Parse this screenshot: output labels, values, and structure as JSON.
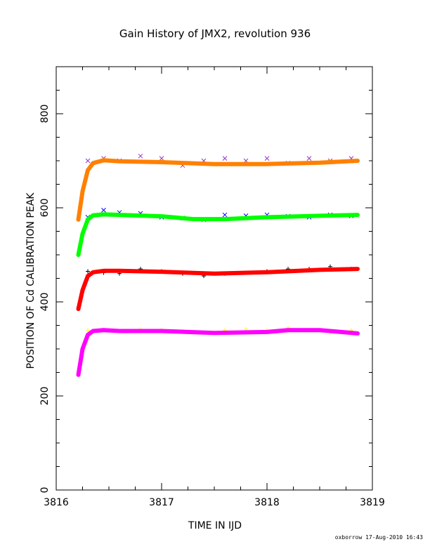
{
  "chart_data": {
    "type": "scatter",
    "title": "Gain History of JMX2, revolution 936",
    "xlabel": "TIME IN IJD",
    "ylabel": "POSITION OF Cd CALIBRATION PEAK",
    "xlim": [
      3816,
      3819
    ],
    "ylim": [
      0,
      900
    ],
    "x_ticks": [
      "3816",
      "3817",
      "3818",
      "3819"
    ],
    "y_ticks": [
      "0",
      "200",
      "400",
      "600",
      "800"
    ],
    "grid": false,
    "footer": "oxborrow 17-Aug-2010 16:43",
    "series": [
      {
        "marker": "x",
        "color": "#9933cc",
        "x": [
          3816.3,
          3816.45,
          3816.6,
          3816.8,
          3817.0,
          3817.2,
          3817.4,
          3817.6,
          3817.8,
          3818.0,
          3818.2,
          3818.4,
          3818.6,
          3818.8
        ],
        "y": [
          700,
          705,
          700,
          710,
          705,
          690,
          700,
          705,
          700,
          705,
          695,
          705,
          700,
          705
        ]
      },
      {
        "marker": "line",
        "color": "#ff8000",
        "x": [
          3816.21,
          3816.25,
          3816.3,
          3816.35,
          3816.45,
          3816.6,
          3817.0,
          3817.5,
          3818.0,
          3818.5,
          3818.86
        ],
        "y": [
          575,
          635,
          680,
          695,
          701,
          699,
          697,
          693,
          693,
          696,
          700
        ]
      },
      {
        "marker": "x",
        "color": "#0000ff",
        "x": [
          3816.3,
          3816.45,
          3816.6,
          3816.8,
          3817.0,
          3817.2,
          3817.4,
          3817.6,
          3817.8,
          3818.0,
          3818.2,
          3818.4,
          3818.6,
          3818.8
        ],
        "y": [
          580,
          595,
          590,
          588,
          580,
          578,
          575,
          585,
          583,
          585,
          582,
          580,
          585,
          583
        ]
      },
      {
        "marker": "line",
        "color": "#00ff00",
        "x": [
          3816.21,
          3816.25,
          3816.3,
          3816.35,
          3816.45,
          3816.6,
          3817.0,
          3817.3,
          3817.6,
          3818.0,
          3818.5,
          3818.86
        ],
        "y": [
          500,
          545,
          575,
          584,
          586,
          585,
          582,
          576,
          576,
          580,
          583,
          585
        ]
      },
      {
        "marker": "+",
        "color": "#000000",
        "x": [
          3816.3,
          3816.45,
          3816.6,
          3816.8,
          3817.0,
          3817.2,
          3817.4,
          3817.6,
          3817.8,
          3818.0,
          3818.2,
          3818.4,
          3818.6,
          3818.8
        ],
        "y": [
          465,
          462,
          460,
          470,
          465,
          460,
          455,
          460,
          462,
          465,
          470,
          470,
          475,
          470
        ]
      },
      {
        "marker": "line",
        "color": "#ff0000",
        "x": [
          3816.21,
          3816.25,
          3816.3,
          3816.35,
          3816.45,
          3816.6,
          3817.0,
          3817.5,
          3818.0,
          3818.5,
          3818.86
        ],
        "y": [
          385,
          425,
          455,
          463,
          466,
          466,
          464,
          460,
          463,
          468,
          470
        ]
      },
      {
        "marker": "+",
        "color": "#ffff00",
        "x": [
          3816.3,
          3816.45,
          3816.6,
          3816.8,
          3817.0,
          3817.2,
          3817.4,
          3817.6,
          3817.8,
          3818.0,
          3818.2,
          3818.4,
          3818.6,
          3818.8
        ],
        "y": [
          340,
          340,
          338,
          342,
          340,
          338,
          335,
          340,
          342,
          340,
          345,
          340,
          335,
          340
        ]
      },
      {
        "marker": "line",
        "color": "#ff00ff",
        "x": [
          3816.21,
          3816.25,
          3816.3,
          3816.35,
          3816.45,
          3816.6,
          3817.0,
          3817.5,
          3818.0,
          3818.2,
          3818.5,
          3818.86
        ],
        "y": [
          245,
          300,
          330,
          338,
          340,
          338,
          338,
          334,
          336,
          340,
          340,
          333
        ]
      }
    ]
  }
}
